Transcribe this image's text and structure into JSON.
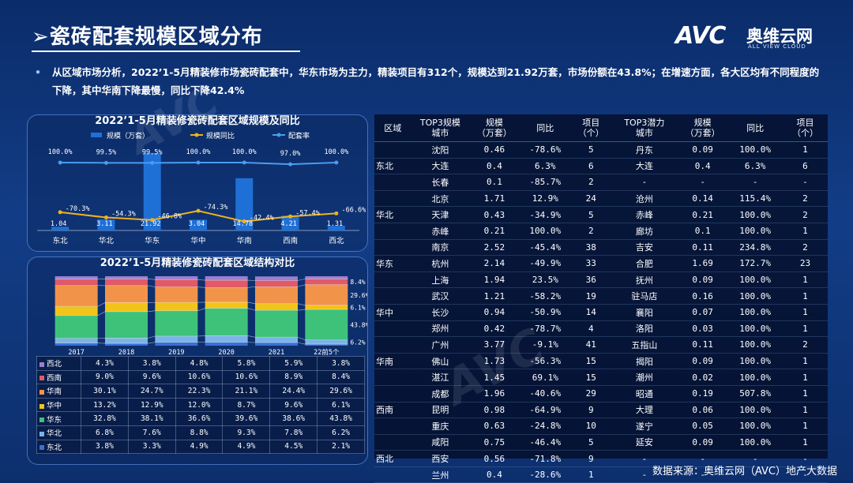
{
  "title": "瓷砖配套规模区域分布",
  "logo": {
    "mark": "AVC",
    "name_cn": "奥维云网",
    "name_en": "ALL VIEW CLOUD"
  },
  "intro": "从区域市场分析，2022’1-5月精装修市场瓷砖配套中，华东市场为主力，精装项目有312个，规模达到21.92万套，市场份额在43.8%；在增速方面，各大区均有不同程度的下降，其中华南下降最慢，同比下降42.4%",
  "source": "数据来源：奥维云网（AVC）地产大数据",
  "colors": {
    "bar": "#1f70d6",
    "yoy_line": "#f2b11b",
    "rate_line": "#4a9cf0"
  },
  "chart_data": [
    {
      "type": "bar",
      "title": "2022’1-5月精装修瓷砖配套区域规模及同比",
      "categories": [
        "东北",
        "华北",
        "华东",
        "华中",
        "华南",
        "西南",
        "西北"
      ],
      "series": [
        {
          "name": "规模（万套）",
          "type": "bar",
          "values": [
            1.04,
            3.11,
            21.92,
            3.04,
            14.78,
            4.21,
            1.31
          ]
        },
        {
          "name": "规模同比",
          "type": "line",
          "values": [
            -70.3,
            -54.3,
            -46.8,
            -74.3,
            -42.4,
            -57.4,
            -66.6
          ]
        },
        {
          "name": "配套率",
          "type": "line",
          "values": [
            100.0,
            99.5,
            99.5,
            100.0,
            100.0,
            97.0,
            100.0
          ]
        }
      ],
      "bar_labels": [
        "1.04",
        "3.11",
        "21.92",
        "3.04",
        "14.78",
        "4.21",
        "1.31"
      ],
      "yoy_labels": [
        "-70.3%",
        "-54.3%",
        "-46.8%",
        "-74.3%",
        "-42.4%",
        "-57.4%",
        "-66.6%"
      ],
      "rate_labels": [
        "100.0%",
        "99.5%",
        "99.5%",
        "100.0%",
        "100.0%",
        "97.0%",
        "100.0%"
      ],
      "legend_position": "top"
    },
    {
      "type": "bar",
      "stacked": true,
      "percent": true,
      "title": "2022’1-5月精装修瓷砖配套区域结构对比",
      "categories": [
        "2017",
        "2018",
        "2019",
        "2020",
        "2021",
        "22前5个"
      ],
      "series": [
        {
          "name": "东北",
          "color": "#3c6fd6",
          "values": [
            3.8,
            3.3,
            4.9,
            4.9,
            4.5,
            2.1
          ]
        },
        {
          "name": "华北",
          "color": "#7bb4e6",
          "values": [
            6.8,
            7.6,
            8.8,
            9.3,
            7.8,
            6.2
          ]
        },
        {
          "name": "华东",
          "color": "#3ec27a",
          "values": [
            32.8,
            38.1,
            36.6,
            39.6,
            38.6,
            43.8
          ]
        },
        {
          "name": "华中",
          "color": "#f0c419",
          "values": [
            13.2,
            12.9,
            12.0,
            8.7,
            9.6,
            6.1
          ]
        },
        {
          "name": "华南",
          "color": "#f2934a",
          "values": [
            30.1,
            24.7,
            22.3,
            21.1,
            24.4,
            29.6
          ]
        },
        {
          "name": "西南",
          "color": "#e05a67",
          "values": [
            9.0,
            9.6,
            10.6,
            10.6,
            8.9,
            8.4
          ]
        },
        {
          "name": "西北",
          "color": "#9b7fd1",
          "values": [
            4.3,
            3.8,
            4.8,
            5.8,
            5.9,
            3.8
          ]
        }
      ],
      "table_rows": [
        {
          "region": "西北",
          "color": "#9b7fd1",
          "values": [
            "4.3%",
            "3.8%",
            "4.8%",
            "5.8%",
            "5.9%",
            "3.8%"
          ]
        },
        {
          "region": "西南",
          "color": "#e05a67",
          "values": [
            "9.0%",
            "9.6%",
            "10.6%",
            "10.6%",
            "8.9%",
            "8.4%"
          ]
        },
        {
          "region": "华南",
          "color": "#f2934a",
          "values": [
            "30.1%",
            "24.7%",
            "22.3%",
            "21.1%",
            "24.4%",
            "29.6%"
          ]
        },
        {
          "region": "华中",
          "color": "#f0c419",
          "values": [
            "13.2%",
            "12.9%",
            "12.0%",
            "8.7%",
            "9.6%",
            "6.1%"
          ]
        },
        {
          "region": "华东",
          "color": "#3ec27a",
          "values": [
            "32.8%",
            "38.1%",
            "36.6%",
            "39.6%",
            "38.6%",
            "43.8%"
          ]
        },
        {
          "region": "华北",
          "color": "#7bb4e6",
          "values": [
            "6.8%",
            "7.6%",
            "8.8%",
            "9.3%",
            "7.8%",
            "6.2%"
          ]
        },
        {
          "region": "东北",
          "color": "#3c6fd6",
          "values": [
            "3.8%",
            "3.3%",
            "4.9%",
            "4.9%",
            "4.5%",
            "2.1%"
          ]
        }
      ],
      "last_bar_labels": [
        "8.4%",
        "29.6%",
        "6.1%",
        "43.8%",
        "6.2%"
      ]
    },
    {
      "type": "table",
      "headers": [
        "区域",
        "TOP3规模\n城市",
        "规模\n（万套）",
        "同比",
        "项目\n（个）",
        "TOP3潜力\n城市",
        "规模\n（万套）",
        "同比",
        "项目\n（个）"
      ],
      "rows": [
        [
          "",
          "沈阳",
          "0.46",
          "-78.6%",
          "5",
          "丹东",
          "0.09",
          "100.0%",
          "1"
        ],
        [
          "东北",
          "大连",
          "0.4",
          "6.3%",
          "6",
          "大连",
          "0.4",
          "6.3%",
          "6"
        ],
        [
          "",
          "长春",
          "0.1",
          "-85.7%",
          "2",
          "-",
          "-",
          "-",
          "-"
        ],
        [
          "",
          "北京",
          "1.71",
          "12.9%",
          "24",
          "沧州",
          "0.14",
          "115.4%",
          "2"
        ],
        [
          "华北",
          "天津",
          "0.43",
          "-34.9%",
          "5",
          "赤峰",
          "0.21",
          "100.0%",
          "2"
        ],
        [
          "",
          "赤峰",
          "0.21",
          "100.0%",
          "2",
          "廊坊",
          "0.1",
          "100.0%",
          "1"
        ],
        [
          "",
          "南京",
          "2.52",
          "-45.4%",
          "38",
          "吉安",
          "0.11",
          "234.8%",
          "2"
        ],
        [
          "华东",
          "杭州",
          "2.14",
          "-49.9%",
          "33",
          "合肥",
          "1.69",
          "172.7%",
          "23"
        ],
        [
          "",
          "上海",
          "1.94",
          "23.5%",
          "36",
          "抚州",
          "0.09",
          "100.0%",
          "1"
        ],
        [
          "",
          "武汉",
          "1.21",
          "-58.2%",
          "19",
          "驻马店",
          "0.16",
          "100.0%",
          "1"
        ],
        [
          "华中",
          "长沙",
          "0.94",
          "-50.9%",
          "14",
          "襄阳",
          "0.07",
          "100.0%",
          "1"
        ],
        [
          "",
          "郑州",
          "0.42",
          "-78.7%",
          "4",
          "洛阳",
          "0.03",
          "100.0%",
          "1"
        ],
        [
          "",
          "广州",
          "3.77",
          "-9.1%",
          "41",
          "五指山",
          "0.11",
          "100.0%",
          "2"
        ],
        [
          "华南",
          "佛山",
          "1.73",
          "-56.3%",
          "15",
          "揭阳",
          "0.09",
          "100.0%",
          "1"
        ],
        [
          "",
          "湛江",
          "1.45",
          "69.1%",
          "15",
          "潮州",
          "0.02",
          "100.0%",
          "1"
        ],
        [
          "",
          "成都",
          "1.96",
          "-40.6%",
          "29",
          "昭通",
          "0.19",
          "507.8%",
          "1"
        ],
        [
          "西南",
          "昆明",
          "0.98",
          "-64.9%",
          "9",
          "大理",
          "0.06",
          "100.0%",
          "1"
        ],
        [
          "",
          "重庆",
          "0.63",
          "-24.8%",
          "10",
          "遂宁",
          "0.05",
          "100.0%",
          "1"
        ],
        [
          "",
          "咸阳",
          "0.75",
          "-46.4%",
          "5",
          "延安",
          "0.09",
          "100.0%",
          "1"
        ],
        [
          "西北",
          "西安",
          "0.56",
          "-71.8%",
          "9",
          "-",
          "-",
          "-",
          "-"
        ],
        [
          "",
          "兰州",
          "0.4",
          "-28.6%",
          "1",
          "-",
          "-",
          "-",
          "-"
        ]
      ]
    }
  ]
}
